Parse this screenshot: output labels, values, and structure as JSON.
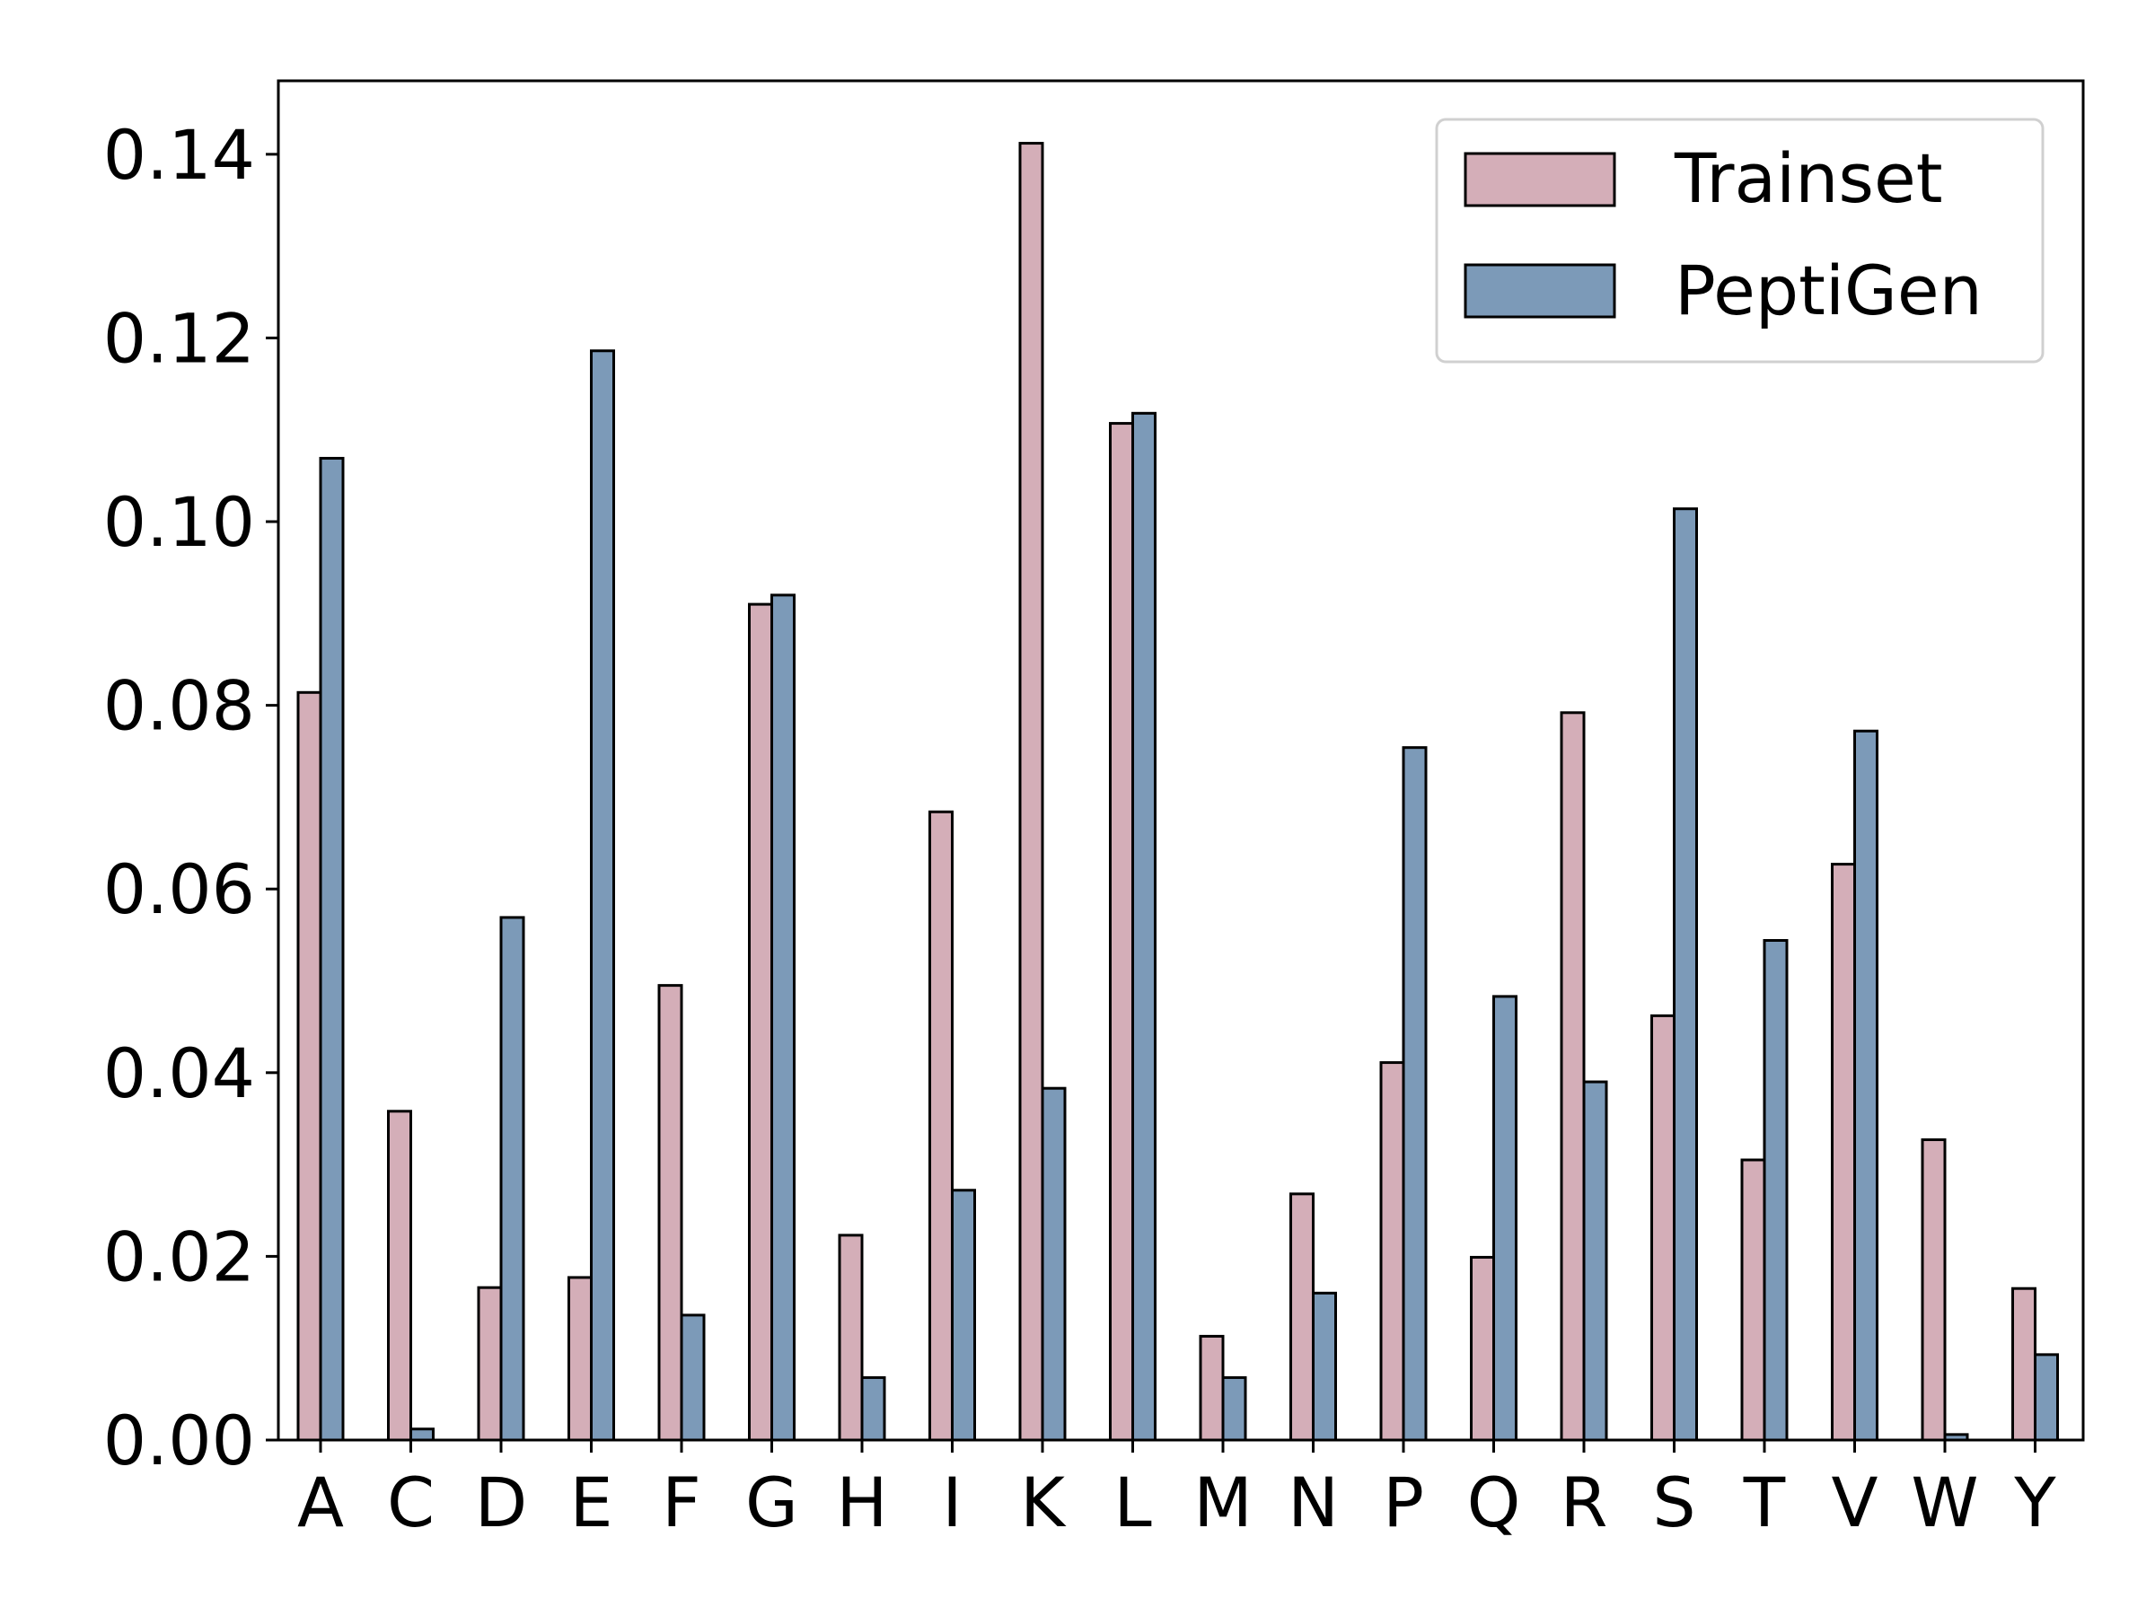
{
  "chart_data": {
    "type": "bar",
    "title": "",
    "xlabel": "",
    "ylabel": "",
    "categories": [
      "A",
      "C",
      "D",
      "E",
      "F",
      "G",
      "H",
      "I",
      "K",
      "L",
      "M",
      "N",
      "P",
      "Q",
      "R",
      "S",
      "T",
      "V",
      "W",
      "Y"
    ],
    "series": [
      {
        "name": "Trainset",
        "color": "#d4aeb8",
        "values": [
          0.0814,
          0.0358,
          0.0166,
          0.0177,
          0.0495,
          0.091,
          0.0223,
          0.0684,
          0.1412,
          0.1107,
          0.0113,
          0.0268,
          0.0411,
          0.0199,
          0.0792,
          0.0462,
          0.0305,
          0.0627,
          0.0327,
          0.0165
        ]
      },
      {
        "name": "PeptiGen",
        "color": "#7c9ab8",
        "values": [
          0.1069,
          0.0012,
          0.0569,
          0.1186,
          0.0136,
          0.092,
          0.0068,
          0.0272,
          0.0383,
          0.1118,
          0.0068,
          0.016,
          0.0754,
          0.0483,
          0.039,
          0.1014,
          0.0544,
          0.0772,
          0.0006,
          0.0093
        ]
      }
    ],
    "ylim": [
      0,
      0.148
    ],
    "yticks": [
      "0.00",
      "0.02",
      "0.04",
      "0.06",
      "0.08",
      "0.10",
      "0.12",
      "0.14"
    ],
    "grid": false,
    "legend_position": "top-right"
  }
}
